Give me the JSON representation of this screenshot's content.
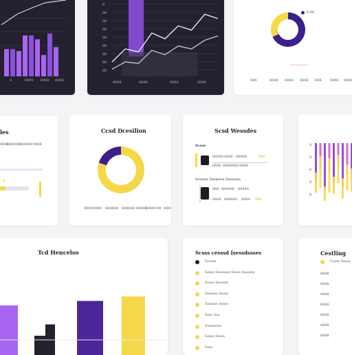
{
  "colors": {
    "purple": "#8b4fe0",
    "violet": "#a865f0",
    "indigo": "#3b1f8a",
    "yellow": "#f5d84a",
    "dark_panel": "#24212f",
    "pink": "#d96ad3"
  },
  "panel_a": {
    "chart_data": {
      "type": "bar",
      "categories": [
        "",
        "",
        "",
        "",
        "",
        "",
        "",
        "",
        ""
      ],
      "values": [
        28,
        28,
        26,
        42,
        42,
        38,
        22,
        44,
        30
      ],
      "ylim": [
        0,
        60
      ],
      "grid": true
    },
    "ticks": [
      "8",
      "8800",
      "8988",
      "8098"
    ]
  },
  "panel_b": {
    "chart_data": {
      "type": "line",
      "series": [
        {
          "values": [
            20,
            38,
            34,
            60,
            52,
            70,
            64,
            86,
            80
          ]
        },
        {
          "values": [
            10,
            20,
            18,
            36,
            30,
            42,
            38,
            50,
            56
          ]
        }
      ],
      "highlight_bar_index": 2,
      "ylim": [
        0,
        100
      ],
      "grid": true
    },
    "ylabels": [
      "8",
      "88",
      "88",
      "88",
      "88",
      "88",
      "88",
      "88",
      "88"
    ],
    "ticks": [
      "8888",
      "8888",
      "8888",
      "8888"
    ]
  },
  "panel_c": {
    "legend": "8 88",
    "chart_data": {
      "type": "pie",
      "values": [
        68,
        32
      ],
      "colors": [
        "#3b1f8a",
        "#f5d84a"
      ]
    },
    "ticks": [
      "888",
      "8888",
      "8888",
      "8888",
      "888",
      "8888",
      "8888"
    ]
  },
  "panel_d": {
    "title": "les",
    "rows": [
      "8888",
      "888888",
      "888888",
      "8888"
    ],
    "value": "8",
    "progress": 0.18
  },
  "panel_e": {
    "title": "Ccsd Dcesilion",
    "chart_data": {
      "type": "pie",
      "values": [
        80,
        20
      ],
      "colors": [
        "#f5d84a",
        "#3b1f8a"
      ]
    },
    "footer": [
      "888",
      "88888",
      "888888",
      "888888",
      "88888",
      "88888",
      "88",
      "88888"
    ]
  },
  "panel_f": {
    "title": "Scsd Wessdes",
    "section": "Scsss",
    "row1": [
      "88888",
      "8888",
      "88888",
      "888"
    ],
    "row1_sub": [
      "8888",
      "8888888",
      "8888"
    ],
    "section2": "Sesmss Sesmess Ssessass",
    "row2": [
      "888",
      "888888",
      "88888"
    ],
    "row2_sub": [
      "8888",
      "888888",
      "8888",
      "888"
    ]
  },
  "panel_g": {
    "chart_data": {
      "type": "bar",
      "series": [
        {
          "name": "",
          "values": [
            0.65,
            0.45,
            0.85,
            0.5,
            0.7,
            0.4,
            0.75,
            0.55,
            0.6
          ]
        },
        {
          "name": "",
          "values": [
            0.35,
            0.55,
            0.25,
            0.6,
            0.3,
            0.5,
            0.35,
            0.45,
            0.4
          ]
        }
      ]
    },
    "ylabels": [
      "8",
      "8",
      "8",
      "8",
      "8"
    ]
  },
  "panel_h": {
    "title": "Tcd Hencelso",
    "chart_data": {
      "type": "bar",
      "categories": [
        "",
        "",
        "",
        "",
        "",
        ""
      ],
      "values": [
        70,
        30,
        45,
        76,
        0,
        82
      ],
      "colors": [
        "#a865f0",
        "#24212f",
        "#24212f",
        "#4b2599",
        "#ffffff",
        "#f5d84a"
      ]
    }
  },
  "panel_i": {
    "title": "Scsss cesssd Isessdssses",
    "items": [
      "Scssss",
      "Sssss Ssssssss Sssss Sssssss",
      "Sssss Sssssss",
      "Sssssss Sssss",
      "Sssssss Sssss",
      "Ssss Sss",
      "Sssssssss",
      "Sssss Sssss",
      "Ssss"
    ]
  },
  "panel_j": {
    "title": "Cestling",
    "items": [
      "Cssss Sssss",
      "8888",
      "8888",
      "8888",
      "8888",
      "8888",
      "8888",
      "8888"
    ]
  }
}
